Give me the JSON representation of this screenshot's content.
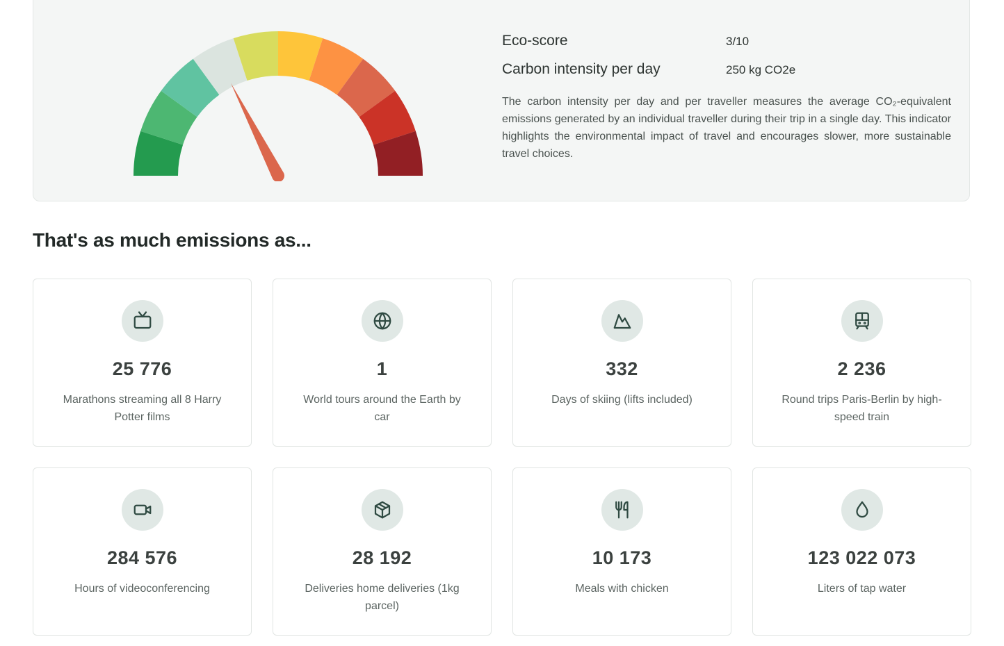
{
  "score_panel": {
    "eco_score_label": "Eco-score",
    "eco_score_value": "3/10",
    "eco_score_fraction": 0.3,
    "carbon_label": "Carbon intensity per day",
    "carbon_value": "250 kg CO2e",
    "description": "The carbon intensity per day and per traveller measures the average CO₂-equivalent emissions generated by an individual traveller during their trip in a single day. This indicator highlights the environmental impact of travel and encourages slower, more sustainable travel choices.",
    "gauge_colors": [
      "#249b4f",
      "#4db772",
      "#60c3a1",
      "#dbe4df",
      "#d8dc5e",
      "#fec53a",
      "#fd9243",
      "#db674c",
      "#cb3327",
      "#921f24"
    ],
    "needle_color": "#db674c"
  },
  "section_title": "That's as much emissions as...",
  "cards": [
    {
      "icon": "tv-icon",
      "value": "25 776",
      "label": "Marathons streaming all 8 Harry Potter films"
    },
    {
      "icon": "globe-icon",
      "value": "1",
      "label": "World tours around the Earth by car"
    },
    {
      "icon": "mountain-icon",
      "value": "332",
      "label": "Days of skiing (lifts included)"
    },
    {
      "icon": "train-icon",
      "value": "2 236",
      "label": "Round trips Paris-Berlin by high-speed train"
    },
    {
      "icon": "video-icon",
      "value": "284 576",
      "label": "Hours of videoconferencing"
    },
    {
      "icon": "package-icon",
      "value": "28 192",
      "label": "Deliveries home deliveries (1kg parcel)"
    },
    {
      "icon": "utensils-icon",
      "value": "10 173",
      "label": "Meals with chicken"
    },
    {
      "icon": "droplet-icon",
      "value": "123 022 073",
      "label": "Liters of tap water"
    }
  ]
}
